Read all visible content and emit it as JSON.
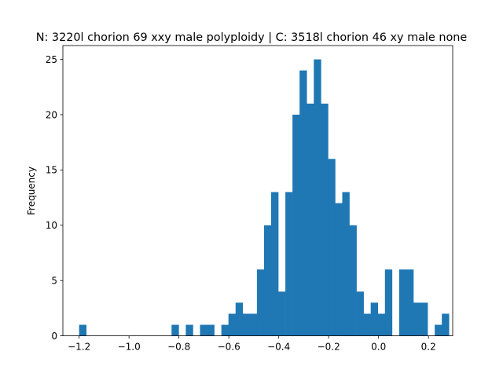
{
  "chart_data": {
    "type": "bar",
    "title": "N: 3220l chorion 69 xxy male polyploidy | C: 3518l chorion 46 xy male none",
    "xlabel": "",
    "ylabel": "Frequency",
    "xlim": [
      -1.265,
      0.297
    ],
    "ylim": [
      0,
      26.25
    ],
    "xticks": [
      -1.2,
      -1.0,
      -0.8,
      -0.6,
      -0.4,
      -0.2,
      0.0,
      0.2
    ],
    "xtick_labels": [
      "−1.2",
      "−1.0",
      "−0.8",
      "−0.6",
      "−0.4",
      "−0.2",
      "0.0",
      "0.2"
    ],
    "yticks": [
      0,
      5,
      10,
      15,
      20,
      25
    ],
    "ytick_labels": [
      "0",
      "5",
      "10",
      "15",
      "20",
      "25"
    ],
    "grid": false,
    "color": "#1f77b4",
    "bin_start": -1.2,
    "bin_width": 0.0285,
    "counts": [
      1,
      0,
      0,
      0,
      0,
      0,
      0,
      0,
      0,
      0,
      0,
      0,
      0,
      1,
      0,
      1,
      0,
      1,
      1,
      0,
      1,
      2,
      3,
      2,
      2,
      6,
      10,
      13,
      4,
      13,
      20,
      24,
      21,
      25,
      21,
      16,
      12,
      13,
      10,
      4,
      2,
      3,
      2,
      6,
      0,
      6,
      6,
      3,
      3,
      0,
      1,
      2
    ]
  }
}
